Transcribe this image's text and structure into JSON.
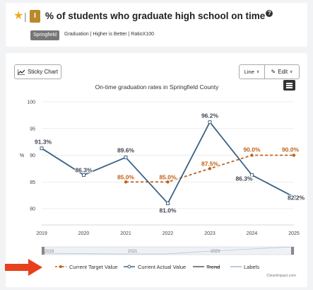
{
  "header": {
    "title": "% of students who graduate high school on time",
    "tag": "Springfield",
    "meta": "Graduation | Higher is Better | RatioX100",
    "badge": "I"
  },
  "toolbar": {
    "sticky_label": "Sticky Chart",
    "chart_type_label": "Line",
    "edit_label": "Edit"
  },
  "colors": {
    "target": "#c0621c",
    "actual": "#3c6386",
    "accent_star": "#f0ab1e"
  },
  "legend": {
    "items": [
      {
        "label": "Current Target Value"
      },
      {
        "label": "Current Actual Value"
      },
      {
        "label": "Trend"
      },
      {
        "label": "Labels"
      }
    ],
    "credit": "ClearImpact.com"
  },
  "navigator": {
    "labels": [
      "2019",
      "2021",
      "2023"
    ]
  },
  "chart_data": {
    "type": "line",
    "title": "On-time graduation rates in Springfield County",
    "ylabel": "%",
    "xlabel": "",
    "ylim": [
      80,
      100
    ],
    "yticks": [
      80,
      85,
      90,
      95,
      100
    ],
    "categories": [
      "2019",
      "2020",
      "2021",
      "2022",
      "2023",
      "2024",
      "2025"
    ],
    "series": [
      {
        "name": "Current Actual Value",
        "values": [
          91.3,
          86.3,
          89.6,
          81.0,
          96.2,
          86.3,
          82.2
        ],
        "labels": [
          "91.3%",
          "86.3%",
          "89.6%",
          "81.0%",
          "96.2%",
          "86.3%",
          "82.2%"
        ]
      },
      {
        "name": "Current Target Value",
        "values": [
          null,
          null,
          85.0,
          85.0,
          87.5,
          90.0,
          90.0
        ],
        "labels": [
          null,
          null,
          "85.0%",
          "85.0%",
          "87.5%",
          "90.0%",
          "90.0%"
        ]
      }
    ],
    "grid": true,
    "legend_position": "bottom"
  }
}
